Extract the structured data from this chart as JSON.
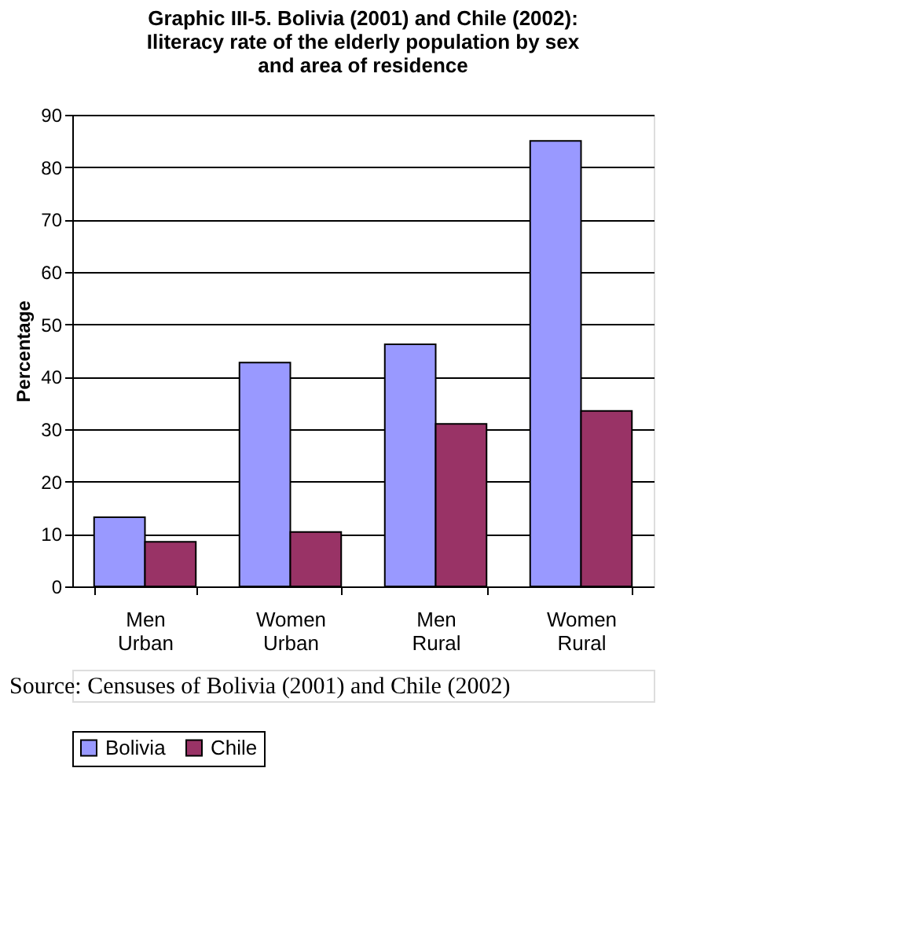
{
  "chart_data": {
    "type": "bar",
    "title": "Graphic III-5. Bolivia (2001) and Chile (2002): Iliteracy rate of the elderly population by sex and area of residence",
    "ylabel": "Percentage",
    "categories": [
      "Men Urban",
      "Women Urban",
      "Men Rural",
      "Women Rural"
    ],
    "series": [
      {
        "name": "Bolivia",
        "color": "#9999ff",
        "values": [
          13.2,
          42.7,
          46.2,
          85.0
        ]
      },
      {
        "name": "Chile",
        "color": "#993366",
        "values": [
          8.5,
          10.4,
          31.0,
          33.5
        ]
      }
    ],
    "ylim": [
      0,
      90
    ],
    "yticks": [
      0,
      10,
      20,
      30,
      40,
      50,
      60,
      70,
      80,
      90
    ],
    "grid": "y",
    "legend": "bottom",
    "annotations": [
      "Source: Censuses of Bolivia (2001) and Chile (2002)"
    ]
  }
}
